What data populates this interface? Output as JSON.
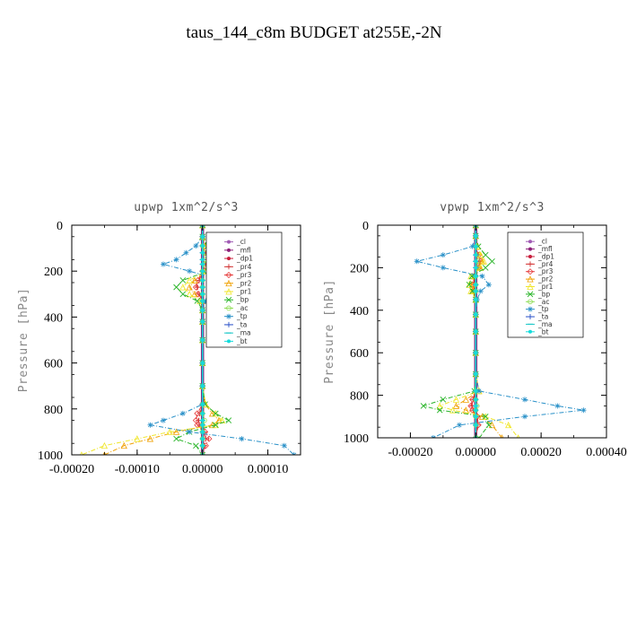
{
  "figure_title": "taus_144_c8m  BUDGET at255E,-2N",
  "legend_entries": [
    {
      "name": "_cl",
      "color": "#a05ab4",
      "marker": "dot"
    },
    {
      "name": "_mfl",
      "color": "#8c1e78",
      "marker": "dot"
    },
    {
      "name": "_dp1",
      "color": "#c81e3c",
      "marker": "dot"
    },
    {
      "name": "_pr4",
      "color": "#d23232",
      "marker": "plus"
    },
    {
      "name": "_pr3",
      "color": "#e63c3c",
      "marker": "diamond"
    },
    {
      "name": "_pr2",
      "color": "#f0a000",
      "marker": "triangle"
    },
    {
      "name": "_pr1",
      "color": "#f0e628",
      "marker": "triangle"
    },
    {
      "name": "_bp",
      "color": "#28b428",
      "marker": "cross"
    },
    {
      "name": "_ac",
      "color": "#8cdc50",
      "marker": "circle"
    },
    {
      "name": "_tp",
      "color": "#2890c8",
      "marker": "star"
    },
    {
      "name": "_ta",
      "color": "#2850c8",
      "marker": "plus"
    },
    {
      "name": "_ma",
      "color": "#1ec8c8",
      "marker": "dash"
    },
    {
      "name": "_bt",
      "color": "#14dcdc",
      "marker": "dot"
    }
  ],
  "chart_data": [
    {
      "type": "line",
      "title": "upwp   1xm^2/s^3",
      "xlabel": "",
      "ylabel": "Pressure [hPa]",
      "xlim": [
        -0.0002,
        0.00015
      ],
      "ylim": [
        1000,
        0
      ],
      "xticks": [
        -0.0002,
        -0.0001,
        0.0,
        0.0001
      ],
      "xtick_labels": [
        "-0.00020",
        "-0.00010",
        "0.00000",
        "0.00010"
      ],
      "yticks": [
        0,
        200,
        400,
        600,
        800,
        1000
      ],
      "ytick_labels": [
        "0",
        "200",
        "400",
        "600",
        "800",
        "1000"
      ],
      "legend_position": "top-right",
      "y": [
        0,
        50,
        90,
        120,
        150,
        170,
        200,
        240,
        270,
        300,
        330,
        370,
        420,
        500,
        600,
        700,
        780,
        820,
        850,
        870,
        900,
        930,
        960,
        1000
      ],
      "series": [
        {
          "name": "_cl",
          "values": [
            0,
            0,
            0,
            0,
            0,
            0,
            0,
            0,
            0,
            0,
            0,
            0,
            0,
            0,
            0,
            0,
            0,
            0,
            0,
            0,
            0,
            0,
            0,
            0
          ]
        },
        {
          "name": "_mfl",
          "values": [
            0,
            0,
            0,
            0,
            0,
            0,
            0,
            0,
            0,
            0,
            0,
            0,
            0,
            0,
            0,
            0,
            0,
            0,
            0,
            0,
            0,
            0,
            0,
            0
          ]
        },
        {
          "name": "_dp1",
          "values": [
            0,
            0,
            0,
            0,
            0,
            0,
            0,
            0,
            0,
            0,
            0,
            0,
            0,
            0,
            0,
            0,
            0,
            0,
            0,
            0,
            0,
            0,
            0,
            0
          ]
        },
        {
          "name": "_pr4",
          "values": [
            0,
            0,
            0,
            5e-06,
            8e-06,
            5e-06,
            0,
            -5e-06,
            -8e-06,
            -5e-06,
            0,
            0,
            0,
            0,
            0,
            0,
            0,
            -4e-06,
            -6e-06,
            -4e-06,
            3e-06,
            5e-06,
            3e-06,
            0
          ]
        },
        {
          "name": "_pr3",
          "values": [
            0,
            0,
            0,
            7e-06,
            1e-05,
            7e-06,
            0,
            -7e-06,
            -1e-05,
            -7e-06,
            0,
            0,
            0,
            0,
            0,
            0,
            0,
            -8e-06,
            -1e-05,
            -8e-06,
            4e-06,
            1e-05,
            5e-06,
            0
          ]
        },
        {
          "name": "_pr2",
          "values": [
            0,
            0,
            5e-06,
            1e-05,
            1.5e-05,
            1.2e-05,
            5e-06,
            -1.2e-05,
            -2e-05,
            -1.2e-05,
            0,
            0,
            0,
            0,
            0,
            0,
            4e-06,
            1.5e-05,
            2.5e-05,
            1.5e-05,
            -4e-05,
            -8e-05,
            -0.00012,
            -0.00015
          ]
        },
        {
          "name": "_pr1",
          "values": [
            0,
            0,
            6e-06,
            1e-05,
            1.5e-05,
            1.5e-05,
            6e-06,
            -2e-05,
            -3e-05,
            -2e-05,
            -4e-06,
            0,
            0,
            0,
            0,
            0,
            5e-06,
            2e-05,
            3e-05,
            2e-05,
            -5e-05,
            -0.0001,
            -0.00015,
            -0.000185
          ]
        },
        {
          "name": "_bp",
          "values": [
            0,
            0,
            8e-06,
            2e-05,
            3e-05,
            2e-05,
            8e-06,
            -3e-05,
            -4e-05,
            -3e-05,
            -8e-06,
            0,
            0,
            0,
            0,
            0,
            4e-06,
            2e-05,
            4e-05,
            2e-05,
            -2e-05,
            -4e-05,
            -1e-05,
            0
          ]
        },
        {
          "name": "_ac",
          "values": [
            0,
            0,
            0,
            3e-06,
            5e-06,
            3e-06,
            0,
            0,
            0,
            0,
            0,
            0,
            0,
            0,
            0,
            0,
            0,
            0,
            3e-06,
            0,
            0,
            0,
            0,
            0
          ]
        },
        {
          "name": "_tp",
          "values": [
            0,
            0,
            -1e-05,
            -2.5e-05,
            -4e-05,
            -6e-05,
            -2e-05,
            3e-05,
            6e-05,
            3e-05,
            5e-06,
            0,
            0,
            0,
            0,
            0,
            0,
            -3e-05,
            -6e-05,
            -8e-05,
            -2e-05,
            6e-05,
            0.000125,
            0.00014
          ]
        },
        {
          "name": "_ta",
          "values": [
            0,
            0,
            0,
            0,
            0,
            0,
            0,
            0,
            0,
            0,
            0,
            0,
            0,
            0,
            0,
            0,
            0,
            0,
            0,
            0,
            0,
            0,
            0,
            0
          ]
        },
        {
          "name": "_ma",
          "values": [
            0,
            0,
            0,
            0,
            0,
            0,
            0,
            0,
            0,
            0,
            0,
            0,
            0,
            0,
            0,
            0,
            0,
            0,
            0,
            0,
            0,
            0,
            0,
            0
          ]
        },
        {
          "name": "_bt",
          "values": [
            0,
            0,
            0,
            0,
            0,
            0,
            0,
            0,
            0,
            0,
            0,
            0,
            0,
            0,
            0,
            0,
            0,
            0,
            0,
            0,
            0,
            0,
            0,
            0
          ]
        }
      ]
    },
    {
      "type": "line",
      "title": "vpwp   1xm^2/s^3",
      "xlabel": "",
      "ylabel": "Pressure [hPa]",
      "xlim": [
        -0.0003,
        0.0004
      ],
      "ylim": [
        1000,
        0
      ],
      "xticks": [
        -0.0002,
        0.0,
        0.0002,
        0.0004
      ],
      "xtick_labels": [
        "-0.00020",
        "0.00000",
        "0.00020",
        "0.00040"
      ],
      "yticks": [
        0,
        200,
        400,
        600,
        800,
        1000
      ],
      "ytick_labels": [
        "0",
        "200",
        "400",
        "600",
        "800",
        "1000"
      ],
      "legend_position": "top-right",
      "y": [
        0,
        50,
        100,
        140,
        170,
        200,
        240,
        280,
        310,
        350,
        420,
        500,
        600,
        700,
        780,
        820,
        850,
        870,
        900,
        940,
        1000
      ],
      "series": [
        {
          "name": "_cl",
          "values": [
            0,
            0,
            0,
            0,
            0,
            0,
            0,
            0,
            0,
            0,
            0,
            0,
            0,
            0,
            0,
            0,
            0,
            0,
            0,
            0,
            0
          ]
        },
        {
          "name": "_mfl",
          "values": [
            0,
            0,
            0,
            0,
            0,
            0,
            0,
            0,
            0,
            0,
            0,
            0,
            0,
            0,
            0,
            0,
            0,
            0,
            0,
            0,
            0
          ]
        },
        {
          "name": "_dp1",
          "values": [
            0,
            0,
            0,
            0,
            0,
            0,
            0,
            0,
            0,
            0,
            0,
            0,
            0,
            0,
            0,
            0,
            0,
            0,
            0,
            0,
            0
          ]
        },
        {
          "name": "_pr4",
          "values": [
            0,
            0,
            0,
            8e-06,
            1.2e-05,
            8e-06,
            -4e-06,
            -6e-06,
            -4e-06,
            0,
            0,
            0,
            0,
            0,
            0,
            -8e-06,
            -1.2e-05,
            -8e-06,
            4e-06,
            6e-06,
            0
          ]
        },
        {
          "name": "_pr3",
          "values": [
            0,
            0,
            0,
            1e-05,
            1.5e-05,
            1e-05,
            -5e-06,
            -8e-06,
            -5e-06,
            0,
            0,
            0,
            0,
            0,
            0,
            -1e-05,
            -1.5e-05,
            -1e-05,
            5e-06,
            8e-06,
            0
          ]
        },
        {
          "name": "_pr2",
          "values": [
            0,
            0,
            5e-06,
            1.5e-05,
            2e-05,
            1.2e-05,
            -1e-05,
            -1.2e-05,
            -1e-05,
            0,
            0,
            0,
            0,
            0,
            1e-05,
            -3e-05,
            -6e-05,
            -3e-05,
            2e-05,
            5e-05,
            8e-05
          ]
        },
        {
          "name": "_pr1",
          "values": [
            0,
            0,
            6e-06,
            1.5e-05,
            2.5e-05,
            1.5e-05,
            -1.5e-05,
            -2e-05,
            -1.5e-05,
            0,
            0,
            0,
            0,
            0,
            1e-05,
            -6e-05,
            -0.00011,
            -7e-05,
            3e-05,
            0.0001,
            0.00013
          ]
        },
        {
          "name": "_bp",
          "values": [
            0,
            0,
            8e-06,
            3e-05,
            5e-05,
            3e-05,
            -1.2e-05,
            -2e-05,
            -1e-05,
            0,
            0,
            0,
            0,
            0,
            -4e-06,
            -0.0001,
            -0.00016,
            -0.00011,
            3e-05,
            4e-05,
            1e-05
          ]
        },
        {
          "name": "_ac",
          "values": [
            0,
            0,
            0,
            4e-06,
            6e-06,
            4e-06,
            0,
            0,
            0,
            0,
            0,
            0,
            0,
            0,
            0,
            0,
            4e-06,
            0,
            0,
            0,
            0
          ]
        },
        {
          "name": "_tp",
          "values": [
            0,
            0,
            -1e-05,
            -0.0001,
            -0.00018,
            -0.0001,
            2e-05,
            4e-05,
            1.5e-05,
            4e-06,
            0,
            0,
            0,
            0,
            1e-05,
            0.00015,
            0.00025,
            0.00033,
            0.00015,
            -5e-05,
            -0.00013
          ]
        },
        {
          "name": "_ta",
          "values": [
            0,
            0,
            0,
            0,
            0,
            0,
            0,
            0,
            0,
            0,
            0,
            0,
            0,
            0,
            0,
            0,
            0,
            0,
            0,
            0,
            0
          ]
        },
        {
          "name": "_ma",
          "values": [
            0,
            0,
            0,
            0,
            0,
            0,
            0,
            0,
            0,
            0,
            0,
            0,
            0,
            0,
            0,
            0,
            0,
            0,
            0,
            0,
            0
          ]
        },
        {
          "name": "_bt",
          "values": [
            0,
            0,
            0,
            0,
            0,
            0,
            0,
            0,
            0,
            0,
            0,
            0,
            0,
            0,
            0,
            0,
            0,
            0,
            0,
            0,
            0
          ]
        }
      ]
    }
  ]
}
